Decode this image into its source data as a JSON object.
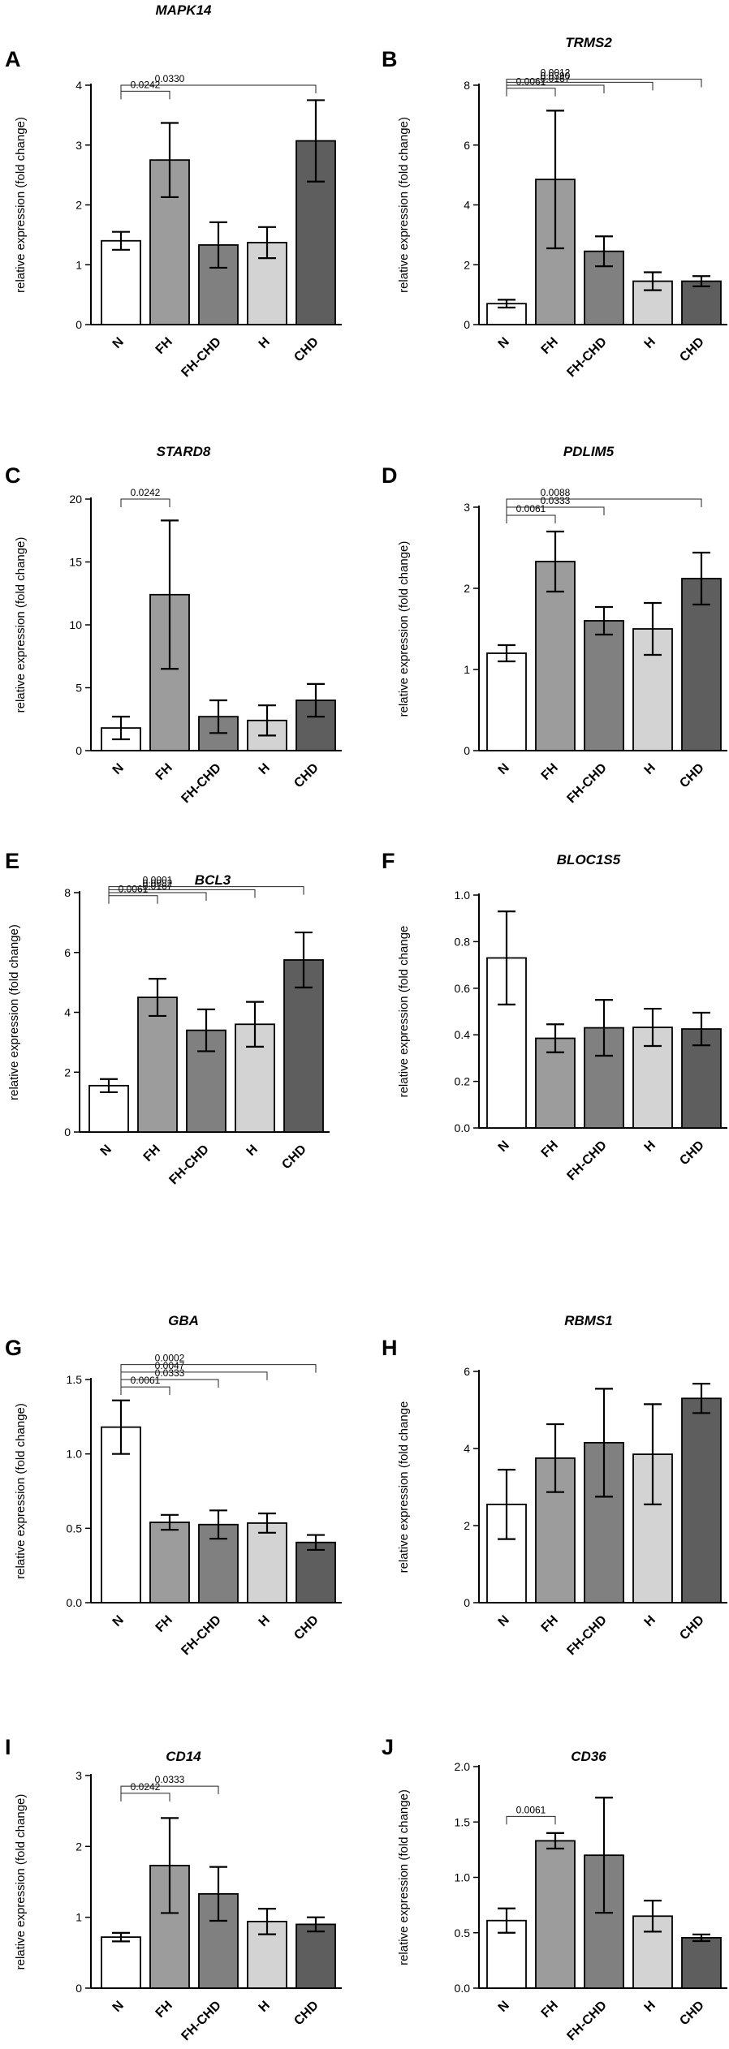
{
  "style": {
    "bar_fills": [
      "#ffffff",
      "#9c9c9c",
      "#808080",
      "#d3d3d3",
      "#5e5e5e"
    ],
    "stroke": "#000000",
    "sig_color": "#222222"
  },
  "chart_data": [
    {
      "type": "bar",
      "panel": "A",
      "title": "MAPK14",
      "ylabel": "relative expression (fold change)",
      "categories": [
        "N",
        "FH",
        "FH-CHD",
        "H",
        "CHD"
      ],
      "values": [
        1.4,
        2.75,
        1.33,
        1.37,
        3.07
      ],
      "errors": [
        0.15,
        0.62,
        0.38,
        0.26,
        0.68
      ],
      "ylim": [
        0,
        4
      ],
      "yticks": [
        0,
        1,
        2,
        3,
        4
      ],
      "tick_labels": [
        "0",
        "1",
        "2",
        "3",
        "4"
      ],
      "significance": [
        {
          "from": 0,
          "to": 1,
          "label": "0.0242",
          "y": 3.9
        },
        {
          "from": 0,
          "to": 4,
          "label": "0.0330",
          "y": 4.0
        }
      ]
    },
    {
      "type": "bar",
      "panel": "B",
      "title": "TRMS2",
      "ylabel": "relative expression (fold change)",
      "categories": [
        "N",
        "FH",
        "FH-CHD",
        "H",
        "CHD"
      ],
      "values": [
        0.7,
        4.85,
        2.45,
        1.45,
        1.45
      ],
      "errors": [
        0.13,
        2.3,
        0.5,
        0.3,
        0.17
      ],
      "ylim": [
        0,
        8
      ],
      "yticks": [
        0,
        2,
        4,
        6,
        8
      ],
      "tick_labels": [
        "0",
        "2",
        "4",
        "6",
        "8"
      ],
      "significance": [
        {
          "from": 0,
          "to": 1,
          "label": "0.0061",
          "y": 7.9
        },
        {
          "from": 0,
          "to": 2,
          "label": "0.0167",
          "y": 8.0
        },
        {
          "from": 0,
          "to": 3,
          "label": "0.0390",
          "y": 8.1
        },
        {
          "from": 0,
          "to": 4,
          "label": "0.0012",
          "y": 8.2
        }
      ]
    },
    {
      "type": "bar",
      "panel": "C",
      "title": "STARD8",
      "ylabel": "relative expression (fold change)",
      "categories": [
        "N",
        "FH",
        "FH-CHD",
        "H",
        "CHD"
      ],
      "values": [
        1.8,
        12.4,
        2.7,
        2.4,
        4.0
      ],
      "errors": [
        0.9,
        5.9,
        1.3,
        1.2,
        1.3
      ],
      "ylim": [
        0,
        20
      ],
      "yticks": [
        0,
        5,
        10,
        15,
        20
      ],
      "tick_labels": [
        "0",
        "5",
        "10",
        "15",
        "20"
      ],
      "significance": [
        {
          "from": 0,
          "to": 1,
          "label": "0.0242",
          "y": 20.0
        }
      ]
    },
    {
      "type": "bar",
      "panel": "D",
      "title": "PDLIM5",
      "ylabel": "relative expression (fold change)",
      "categories": [
        "N",
        "FH",
        "FH-CHD",
        "H",
        "CHD"
      ],
      "values": [
        1.2,
        2.33,
        1.6,
        1.5,
        2.12
      ],
      "errors": [
        0.1,
        0.37,
        0.17,
        0.32,
        0.32
      ],
      "ylim": [
        0,
        3
      ],
      "yticks": [
        0,
        1,
        2,
        3
      ],
      "tick_labels": [
        "0",
        "1",
        "2",
        "3"
      ],
      "significance": [
        {
          "from": 0,
          "to": 1,
          "label": "0.0061",
          "y": 2.9
        },
        {
          "from": 0,
          "to": 2,
          "label": "0.0333",
          "y": 3.0
        },
        {
          "from": 0,
          "to": 4,
          "label": "0.0088",
          "y": 3.1
        }
      ]
    },
    {
      "type": "bar",
      "panel": "E",
      "title": "BCL3",
      "ylabel": "relative expression (fold change)",
      "categories": [
        "N",
        "FH",
        "FH-CHD",
        "H",
        "CHD"
      ],
      "values": [
        1.55,
        4.5,
        3.4,
        3.6,
        5.75
      ],
      "errors": [
        0.22,
        0.62,
        0.7,
        0.75,
        0.92
      ],
      "ylim": [
        0,
        8
      ],
      "yticks": [
        0,
        2,
        4,
        6,
        8
      ],
      "tick_labels": [
        "0",
        "2",
        "4",
        "6",
        "8"
      ],
      "significance": [
        {
          "from": 0,
          "to": 1,
          "label": "0.0061",
          "y": 7.9
        },
        {
          "from": 0,
          "to": 2,
          "label": "0.0167",
          "y": 8.0
        },
        {
          "from": 0,
          "to": 3,
          "label": "0.0082",
          "y": 8.1
        },
        {
          "from": 0,
          "to": 4,
          "label": "0.0001",
          "y": 8.2
        }
      ]
    },
    {
      "type": "bar",
      "panel": "F",
      "title": "BLOC1S5",
      "ylabel": "relative expression (fold change",
      "categories": [
        "N",
        "FH",
        "FH-CHD",
        "H",
        "CHD"
      ],
      "values": [
        0.73,
        0.385,
        0.43,
        0.432,
        0.425
      ],
      "errors": [
        0.2,
        0.06,
        0.12,
        0.08,
        0.07
      ],
      "ylim": [
        0,
        1.0
      ],
      "yticks": [
        0,
        0.2,
        0.4,
        0.6,
        0.8,
        1.0
      ],
      "tick_labels": [
        "0.0",
        "0.2",
        "0.4",
        "0.6",
        "0.8",
        "1.0"
      ],
      "significance": []
    },
    {
      "type": "bar",
      "panel": "G",
      "title": "GBA",
      "ylabel": "relative expression (fold change)",
      "categories": [
        "N",
        "FH",
        "FH-CHD",
        "H",
        "CHD"
      ],
      "values": [
        1.18,
        0.54,
        0.525,
        0.535,
        0.405
      ],
      "errors": [
        0.18,
        0.05,
        0.095,
        0.065,
        0.05
      ],
      "ylim": [
        0,
        1.5
      ],
      "yticks": [
        0,
        0.5,
        1.0,
        1.5
      ],
      "tick_labels": [
        "0.0",
        "0.5",
        "1.0",
        "1.5"
      ],
      "significance": [
        {
          "from": 0,
          "to": 1,
          "label": "0.0061",
          "y": 1.45
        },
        {
          "from": 0,
          "to": 2,
          "label": "0.0333",
          "y": 1.5
        },
        {
          "from": 0,
          "to": 3,
          "label": "0.0047",
          "y": 1.55
        },
        {
          "from": 0,
          "to": 4,
          "label": "0.0002",
          "y": 1.6
        }
      ]
    },
    {
      "type": "bar",
      "panel": "H",
      "title": "RBMS1",
      "ylabel": "relative expression (fold change",
      "categories": [
        "N",
        "FH",
        "FH-CHD",
        "H",
        "CHD"
      ],
      "values": [
        2.55,
        3.75,
        4.15,
        3.85,
        5.3
      ],
      "errors": [
        0.9,
        0.88,
        1.4,
        1.3,
        0.38
      ],
      "ylim": [
        0,
        6
      ],
      "yticks": [
        0,
        2,
        4,
        6
      ],
      "tick_labels": [
        "0",
        "2",
        "4",
        "6"
      ],
      "significance": []
    },
    {
      "type": "bar",
      "panel": "I",
      "title": "CD14",
      "ylabel": "relative expression (fold change)",
      "categories": [
        "N",
        "FH",
        "FH-CHD",
        "H",
        "CHD"
      ],
      "values": [
        0.72,
        1.73,
        1.33,
        0.94,
        0.9
      ],
      "errors": [
        0.06,
        0.67,
        0.38,
        0.18,
        0.1
      ],
      "ylim": [
        0,
        3
      ],
      "yticks": [
        0,
        1,
        2,
        3
      ],
      "tick_labels": [
        "0",
        "1",
        "2",
        "3"
      ],
      "significance": [
        {
          "from": 0,
          "to": 1,
          "label": "0.0242",
          "y": 2.75
        },
        {
          "from": 0,
          "to": 2,
          "label": "0.0333",
          "y": 2.85
        }
      ]
    },
    {
      "type": "bar",
      "panel": "J",
      "title": "CD36",
      "ylabel": "relative expression (fold change)",
      "categories": [
        "N",
        "FH",
        "FH-CHD",
        "H",
        "CHD"
      ],
      "values": [
        0.61,
        1.33,
        1.2,
        0.65,
        0.455
      ],
      "errors": [
        0.11,
        0.07,
        0.52,
        0.14,
        0.03
      ],
      "ylim": [
        0,
        2.0
      ],
      "yticks": [
        0,
        0.5,
        1.0,
        1.5,
        2.0
      ],
      "tick_labels": [
        "0.0",
        "0.5",
        "1.0",
        "1.5",
        "2.0"
      ],
      "significance": [
        {
          "from": 0,
          "to": 1,
          "label": "0.0061",
          "y": 1.55
        }
      ]
    }
  ]
}
